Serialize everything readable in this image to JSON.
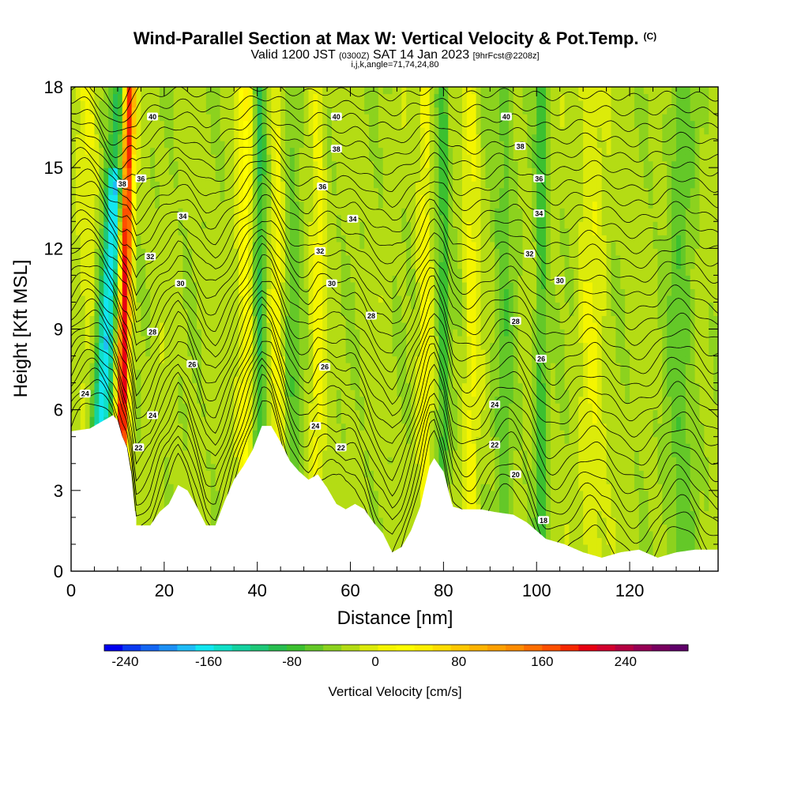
{
  "titles": {
    "main": "Wind-Parallel Section at Max W: Vertical Velocity & Pot.Temp.",
    "copyright": "(C)",
    "valid_a": "Valid 1200 JST",
    "valid_b": "(0300Z)",
    "valid_c": "SAT 14 Jan 2023",
    "valid_d": "[9hrFcst@2208z]",
    "params": "i,j,k,angle=71,74,24,80"
  },
  "chart_data": {
    "type": "heatmap",
    "title": "Wind-Parallel Section at Max W: Vertical Velocity & Pot.Temp.",
    "xlabel": "Distance [nm]",
    "ylabel": "Height [Kft MSL]",
    "xlim": [
      0,
      139
    ],
    "ylim": [
      0,
      18
    ],
    "x_ticks": [
      "0",
      "20",
      "40",
      "60",
      "80",
      "100",
      "120"
    ],
    "y_ticks": [
      "0",
      "3",
      "6",
      "9",
      "12",
      "15",
      "18"
    ],
    "terrain_kft": [
      [
        0,
        5.2
      ],
      [
        4,
        5.3
      ],
      [
        7,
        5.6
      ],
      [
        9,
        5.8
      ],
      [
        10,
        5.6
      ],
      [
        11,
        5.0
      ],
      [
        12,
        4.6
      ],
      [
        13,
        3.5
      ],
      [
        14,
        1.7
      ],
      [
        17,
        1.7
      ],
      [
        19,
        2.2
      ],
      [
        21,
        2.5
      ],
      [
        23,
        3.2
      ],
      [
        25,
        3.0
      ],
      [
        27,
        2.4
      ],
      [
        29,
        1.7
      ],
      [
        31,
        1.7
      ],
      [
        33,
        2.6
      ],
      [
        35,
        3.4
      ],
      [
        37,
        3.9
      ],
      [
        39,
        4.5
      ],
      [
        41,
        5.4
      ],
      [
        43,
        5.4
      ],
      [
        45,
        4.8
      ],
      [
        47,
        4.1
      ],
      [
        49,
        3.7
      ],
      [
        51,
        3.4
      ],
      [
        53,
        3.6
      ],
      [
        55,
        3.1
      ],
      [
        57,
        2.5
      ],
      [
        59,
        2.3
      ],
      [
        61,
        2.5
      ],
      [
        63,
        2.3
      ],
      [
        65,
        1.8
      ],
      [
        67,
        1.4
      ],
      [
        69,
        0.7
      ],
      [
        71,
        0.9
      ],
      [
        73,
        1.5
      ],
      [
        75,
        2.4
      ],
      [
        77,
        3.9
      ],
      [
        78,
        4.2
      ],
      [
        80,
        3.7
      ],
      [
        82,
        2.4
      ],
      [
        84,
        2.3
      ],
      [
        86,
        2.3
      ],
      [
        88,
        2.3
      ],
      [
        91,
        2.2
      ],
      [
        95,
        2.1
      ],
      [
        98,
        1.8
      ],
      [
        102,
        1.2
      ],
      [
        106,
        1.0
      ],
      [
        110,
        0.7
      ],
      [
        114,
        0.5
      ],
      [
        118,
        0.7
      ],
      [
        122,
        0.8
      ],
      [
        126,
        0.5
      ],
      [
        130,
        0.7
      ],
      [
        134,
        0.8
      ],
      [
        139,
        0.8
      ]
    ],
    "w_features": [
      {
        "x": 11.5,
        "w": 280,
        "note": "updraft"
      },
      {
        "x": 8,
        "w": -170,
        "note": "downdraft"
      },
      {
        "x": 40.5,
        "w": -70,
        "note": "downdraft"
      },
      {
        "x": 37,
        "w": 60,
        "note": "updraft"
      },
      {
        "x": 53,
        "w": 40,
        "note": "updraft"
      },
      {
        "x": 80,
        "w": -60,
        "note": "downdraft"
      },
      {
        "x": 101,
        "w": -60,
        "note": "downdraft"
      },
      {
        "x": 86,
        "w": 40,
        "note": "updraft"
      }
    ],
    "theta_labels": [
      {
        "x": 3,
        "y": 6.6,
        "text": "24"
      },
      {
        "x": 14.5,
        "y": 4.6,
        "text": "22"
      },
      {
        "x": 17.5,
        "y": 5.8,
        "text": "24"
      },
      {
        "x": 26,
        "y": 7.7,
        "text": "26"
      },
      {
        "x": 17.5,
        "y": 8.9,
        "text": "28"
      },
      {
        "x": 23.5,
        "y": 10.7,
        "text": "30"
      },
      {
        "x": 17,
        "y": 11.7,
        "text": "32"
      },
      {
        "x": 24,
        "y": 13.2,
        "text": "34"
      },
      {
        "x": 15,
        "y": 14.6,
        "text": "36"
      },
      {
        "x": 11,
        "y": 14.4,
        "text": "38"
      },
      {
        "x": 17.5,
        "y": 16.9,
        "text": "40"
      },
      {
        "x": 52.5,
        "y": 5.4,
        "text": "24"
      },
      {
        "x": 58,
        "y": 4.6,
        "text": "22"
      },
      {
        "x": 54.5,
        "y": 7.6,
        "text": "26"
      },
      {
        "x": 64.5,
        "y": 9.5,
        "text": "28"
      },
      {
        "x": 56,
        "y": 10.7,
        "text": "30"
      },
      {
        "x": 53.5,
        "y": 11.9,
        "text": "32"
      },
      {
        "x": 60.5,
        "y": 13.1,
        "text": "34"
      },
      {
        "x": 54,
        "y": 14.3,
        "text": "36"
      },
      {
        "x": 57,
        "y": 15.7,
        "text": "38"
      },
      {
        "x": 57,
        "y": 16.9,
        "text": "40"
      },
      {
        "x": 91,
        "y": 6.2,
        "text": "24"
      },
      {
        "x": 91,
        "y": 4.7,
        "text": "22"
      },
      {
        "x": 95.5,
        "y": 3.6,
        "text": "20"
      },
      {
        "x": 101.5,
        "y": 1.9,
        "text": "18"
      },
      {
        "x": 101,
        "y": 7.9,
        "text": "26"
      },
      {
        "x": 95.5,
        "y": 9.3,
        "text": "28"
      },
      {
        "x": 105,
        "y": 10.8,
        "text": "30"
      },
      {
        "x": 98.5,
        "y": 11.8,
        "text": "32"
      },
      {
        "x": 100.5,
        "y": 13.3,
        "text": "34"
      },
      {
        "x": 100.5,
        "y": 14.6,
        "text": "36"
      },
      {
        "x": 96.5,
        "y": 15.8,
        "text": "38"
      },
      {
        "x": 93.5,
        "y": 16.9,
        "text": "40"
      }
    ],
    "colorbar": {
      "label": "Vertical Velocity [cm/s]",
      "ticks": [
        "-240",
        "-160",
        "-80",
        "0",
        "80",
        "160",
        "240"
      ],
      "min": -260,
      "max": 300,
      "step": 20,
      "colors": [
        "#0000ee",
        "#0a3af0",
        "#1466f2",
        "#1d90f4",
        "#1fbcf6",
        "#12e6f0",
        "#10e0c8",
        "#14d2a0",
        "#1ec878",
        "#28be50",
        "#3cc030",
        "#64c828",
        "#8cd21e",
        "#b4dc14",
        "#dceb0a",
        "#f5f500",
        "#ffff00",
        "#fff000",
        "#ffdd00",
        "#ffc800",
        "#ffb400",
        "#ffa000",
        "#ff8c00",
        "#ff6e00",
        "#ff5000",
        "#f52800",
        "#e60012",
        "#d2002d",
        "#b40041",
        "#960055",
        "#78005f",
        "#5f0069"
      ]
    }
  }
}
